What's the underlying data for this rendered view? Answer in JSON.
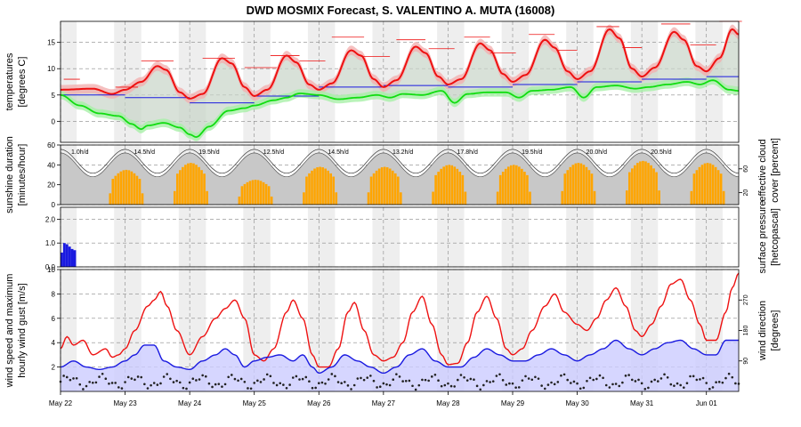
{
  "title": "DWD MOSMIX Forecast, S. VALENTINO A. MUTA (16008)",
  "colors": {
    "temp": "#ee1111",
    "temp_band": "#f2b0b0",
    "dew": "#11dd11",
    "dew_band": "#a8f0a8",
    "blue": "#1a1ae0",
    "sun": "#ffa500",
    "cloud_fill": "#c8c8c8",
    "night": "#eeeeee",
    "wind_fill": "#ccccff"
  },
  "chart_data": [
    {
      "type": "line",
      "panel": "temperature",
      "ylabel": "temperatures\n[degrees C]",
      "ylim": [
        -4,
        19
      ],
      "yticks": [
        0,
        5,
        10,
        15
      ],
      "days": [
        "May 22",
        "May 23",
        "May 24",
        "May 25",
        "May 26",
        "May 27",
        "May 28",
        "May 29",
        "May 30",
        "May 31",
        "Jun 01"
      ],
      "series": [
        {
          "key": "temperature",
          "anchors": [
            [
              0,
              6.0
            ],
            [
              0.5,
              6.2
            ],
            [
              0.8,
              5.2
            ],
            [
              1,
              6.0
            ],
            [
              1.25,
              7.5
            ],
            [
              1.5,
              10.5
            ],
            [
              1.63,
              9.8
            ],
            [
              1.85,
              5.5
            ],
            [
              2,
              4.3
            ],
            [
              2.2,
              5.2
            ],
            [
              2.5,
              12.0
            ],
            [
              2.65,
              11.0
            ],
            [
              2.85,
              6.5
            ],
            [
              3,
              4.8
            ],
            [
              3.2,
              6.0
            ],
            [
              3.5,
              12.5
            ],
            [
              3.65,
              11.2
            ],
            [
              3.85,
              7.0
            ],
            [
              4,
              6.0
            ],
            [
              4.2,
              7.2
            ],
            [
              4.5,
              13.5
            ],
            [
              4.65,
              12.5
            ],
            [
              4.85,
              8.0
            ],
            [
              5,
              6.5
            ],
            [
              5.2,
              7.8
            ],
            [
              5.5,
              14.2
            ],
            [
              5.65,
              13.0
            ],
            [
              5.85,
              8.5
            ],
            [
              6,
              7.0
            ],
            [
              6.2,
              8.0
            ],
            [
              6.5,
              14.8
            ],
            [
              6.65,
              13.5
            ],
            [
              6.85,
              9.0
            ],
            [
              7,
              7.5
            ],
            [
              7.2,
              8.8
            ],
            [
              7.5,
              15.5
            ],
            [
              7.65,
              14.0
            ],
            [
              7.85,
              9.5
            ],
            [
              8,
              8.0
            ],
            [
              8.2,
              9.5
            ],
            [
              8.5,
              17.5
            ],
            [
              8.65,
              15.8
            ],
            [
              8.85,
              10.0
            ],
            [
              9,
              8.5
            ],
            [
              9.2,
              10.2
            ],
            [
              9.5,
              17.0
            ],
            [
              9.65,
              15.5
            ],
            [
              9.85,
              10.5
            ],
            [
              10,
              9.5
            ],
            [
              10.2,
              12.0
            ],
            [
              10.4,
              17.5
            ],
            [
              10.5,
              16.5
            ]
          ]
        },
        {
          "key": "dewpoint",
          "anchors": [
            [
              0,
              5.0
            ],
            [
              0.3,
              3.0
            ],
            [
              0.6,
              1.5
            ],
            [
              0.9,
              1.0
            ],
            [
              1.1,
              -0.5
            ],
            [
              1.25,
              -1.5
            ],
            [
              1.35,
              -0.8
            ],
            [
              1.6,
              -0.3
            ],
            [
              1.85,
              -1.2
            ],
            [
              2,
              -2.5
            ],
            [
              2.1,
              -3.0
            ],
            [
              2.3,
              -1.0
            ],
            [
              2.6,
              2.0
            ],
            [
              2.85,
              2.5
            ],
            [
              3,
              3.0
            ],
            [
              3.3,
              4.0
            ],
            [
              3.5,
              4.5
            ],
            [
              3.7,
              5.3
            ],
            [
              4,
              5.0
            ],
            [
              4.3,
              4.2
            ],
            [
              4.6,
              4.5
            ],
            [
              4.9,
              5.0
            ],
            [
              5.1,
              4.5
            ],
            [
              5.3,
              5.2
            ],
            [
              5.6,
              5.0
            ],
            [
              5.9,
              5.8
            ],
            [
              6.1,
              3.5
            ],
            [
              6.3,
              5.2
            ],
            [
              6.6,
              5.5
            ],
            [
              6.9,
              5.5
            ],
            [
              7.1,
              4.5
            ],
            [
              7.3,
              5.8
            ],
            [
              7.6,
              6.0
            ],
            [
              7.9,
              6.5
            ],
            [
              8.1,
              4.5
            ],
            [
              8.3,
              6.5
            ],
            [
              8.6,
              6.8
            ],
            [
              8.9,
              6.2
            ],
            [
              9.1,
              6.5
            ],
            [
              9.4,
              7.0
            ],
            [
              9.7,
              7.5
            ],
            [
              9.9,
              7.0
            ],
            [
              10.1,
              7.8
            ],
            [
              10.35,
              6.0
            ],
            [
              10.5,
              5.8
            ]
          ]
        }
      ],
      "blue_segments": [
        [
          0,
          5.0
        ],
        [
          1,
          4.5
        ],
        [
          2,
          3.5
        ],
        [
          3,
          4.8
        ],
        [
          4,
          6.5
        ],
        [
          5,
          6.8
        ],
        [
          6,
          6.5
        ],
        [
          7,
          7.0
        ],
        [
          8,
          7.5
        ],
        [
          9,
          8.0
        ],
        [
          10,
          8.5
        ]
      ],
      "max_marks": [
        [
          0.05,
          0.3,
          8.0
        ],
        [
          0.85,
          1.2,
          6.5
        ],
        [
          1.25,
          1.75,
          11.5
        ],
        [
          2.2,
          2.7,
          12.0
        ],
        [
          2.85,
          3.35,
          10.2
        ],
        [
          3.25,
          3.7,
          12.5
        ],
        [
          3.7,
          4.1,
          11.5
        ],
        [
          4.2,
          4.7,
          16.0
        ],
        [
          4.65,
          5.1,
          12.3
        ],
        [
          5.2,
          5.65,
          15.5
        ],
        [
          5.7,
          6.1,
          13.8
        ],
        [
          6.25,
          6.65,
          16.0
        ],
        [
          6.65,
          7.05,
          13.0
        ],
        [
          7.25,
          7.65,
          16.5
        ],
        [
          7.7,
          8.0,
          13.5
        ],
        [
          8.3,
          8.65,
          18.0
        ],
        [
          8.7,
          9.0,
          14.0
        ],
        [
          9.3,
          9.75,
          18.5
        ],
        [
          9.75,
          10.15,
          14.5
        ],
        [
          10.2,
          10.55,
          19.0
        ]
      ]
    },
    {
      "type": "bar",
      "panel": "sunshine",
      "ylabel": "sunshine duration\n[minutes/hour]",
      "ylim": [
        0,
        60
      ],
      "yticks": [
        0,
        20,
        40,
        60
      ],
      "daily_totals": [
        "1.0h/d",
        "14.5h/d",
        "19.5h/d",
        "12.5h/d",
        "14.5h/d",
        "13.2h/d",
        "17.8h/d",
        "19.5h/d",
        "20.0h/d",
        "20.5h/d"
      ],
      "peaks": [
        0,
        35,
        42,
        25,
        38,
        38,
        40,
        40,
        42,
        44,
        42
      ],
      "right_axis": {
        "label": "effective cloud\ncover [percent]",
        "ticks": [
          20,
          60
        ]
      }
    },
    {
      "type": "bar",
      "panel": "precipitation",
      "ylim": [
        0,
        2.5
      ],
      "yticks": [
        0.0,
        1.0,
        2.0
      ],
      "bars": [
        [
          0.0,
          0.6
        ],
        [
          0.04,
          1.0
        ],
        [
          0.08,
          0.95
        ],
        [
          0.12,
          0.85
        ],
        [
          0.16,
          0.75
        ],
        [
          0.2,
          0.7
        ],
        [
          0.24,
          0.0
        ]
      ],
      "right_axis": {
        "label": "surface pressure\n[hetcopascal]"
      }
    },
    {
      "type": "line",
      "panel": "wind",
      "ylabel": "wind speed and maximum\nhourly wind gust [m/s]",
      "ylim": [
        0,
        10
      ],
      "yticks": [
        2,
        4,
        6,
        8,
        10
      ],
      "series": [
        {
          "key": "gust",
          "anchors": [
            [
              0,
              3.5
            ],
            [
              0.1,
              4.5
            ],
            [
              0.2,
              3.8
            ],
            [
              0.35,
              4.2
            ],
            [
              0.5,
              3.0
            ],
            [
              0.7,
              3.5
            ],
            [
              0.8,
              2.8
            ],
            [
              0.9,
              3.0
            ],
            [
              1,
              3.5
            ],
            [
              1.15,
              5.0
            ],
            [
              1.35,
              7.0
            ],
            [
              1.45,
              7.5
            ],
            [
              1.55,
              8.2
            ],
            [
              1.65,
              7.0
            ],
            [
              1.8,
              5.0
            ],
            [
              2,
              3.0
            ],
            [
              2.2,
              4.5
            ],
            [
              2.4,
              6.0
            ],
            [
              2.55,
              6.8
            ],
            [
              2.7,
              7.5
            ],
            [
              2.85,
              6.0
            ],
            [
              3,
              3.0
            ],
            [
              3.15,
              2.5
            ],
            [
              3.3,
              3.5
            ],
            [
              3.5,
              6.5
            ],
            [
              3.6,
              7.5
            ],
            [
              3.75,
              6.0
            ],
            [
              3.9,
              3.0
            ],
            [
              4,
              2.0
            ],
            [
              4.15,
              2.0
            ],
            [
              4.3,
              3.5
            ],
            [
              4.45,
              6.5
            ],
            [
              4.55,
              7.3
            ],
            [
              4.7,
              5.0
            ],
            [
              4.85,
              3.0
            ],
            [
              5,
              2.5
            ],
            [
              5.15,
              2.8
            ],
            [
              5.3,
              4.0
            ],
            [
              5.45,
              6.5
            ],
            [
              5.6,
              7.8
            ],
            [
              5.75,
              5.5
            ],
            [
              5.9,
              3.0
            ],
            [
              6,
              2.2
            ],
            [
              6.15,
              2.3
            ],
            [
              6.3,
              4.0
            ],
            [
              6.45,
              6.5
            ],
            [
              6.6,
              7.8
            ],
            [
              6.75,
              6.0
            ],
            [
              6.9,
              3.5
            ],
            [
              7,
              3.0
            ],
            [
              7.15,
              3.5
            ],
            [
              7.3,
              5.0
            ],
            [
              7.5,
              7.0
            ],
            [
              7.65,
              8.0
            ],
            [
              7.8,
              6.5
            ],
            [
              8,
              5.5
            ],
            [
              8.15,
              5.0
            ],
            [
              8.3,
              6.0
            ],
            [
              8.45,
              7.5
            ],
            [
              8.6,
              8.5
            ],
            [
              8.75,
              7.0
            ],
            [
              8.9,
              5.0
            ],
            [
              9,
              4.5
            ],
            [
              9.15,
              5.5
            ],
            [
              9.3,
              7.0
            ],
            [
              9.45,
              8.8
            ],
            [
              9.6,
              9.2
            ],
            [
              9.75,
              7.5
            ],
            [
              9.9,
              5.5
            ],
            [
              10,
              4.2
            ],
            [
              10.15,
              4.2
            ],
            [
              10.3,
              6.5
            ],
            [
              10.4,
              8.5
            ],
            [
              10.5,
              9.7
            ]
          ]
        },
        {
          "key": "speed",
          "anchors": [
            [
              0,
              2.0
            ],
            [
              0.2,
              2.5
            ],
            [
              0.4,
              2.0
            ],
            [
              0.6,
              1.8
            ],
            [
              0.8,
              2.0
            ],
            [
              1,
              2.5
            ],
            [
              1.15,
              3.0
            ],
            [
              1.3,
              3.8
            ],
            [
              1.45,
              3.8
            ],
            [
              1.6,
              2.5
            ],
            [
              1.8,
              2.0
            ],
            [
              2,
              1.8
            ],
            [
              2.2,
              2.5
            ],
            [
              2.4,
              3.0
            ],
            [
              2.55,
              3.5
            ],
            [
              2.7,
              3.0
            ],
            [
              2.85,
              2.0
            ],
            [
              3,
              2.5
            ],
            [
              3.2,
              2.8
            ],
            [
              3.4,
              3.0
            ],
            [
              3.6,
              2.5
            ],
            [
              3.75,
              3.0
            ],
            [
              3.9,
              2.0
            ],
            [
              4,
              1.5
            ],
            [
              4.2,
              2.0
            ],
            [
              4.4,
              3.0
            ],
            [
              4.6,
              2.5
            ],
            [
              4.8,
              2.0
            ],
            [
              5,
              1.5
            ],
            [
              5.2,
              2.0
            ],
            [
              5.4,
              3.0
            ],
            [
              5.6,
              3.5
            ],
            [
              5.8,
              2.5
            ],
            [
              6,
              2.0
            ],
            [
              6.2,
              2.0
            ],
            [
              6.4,
              2.8
            ],
            [
              6.6,
              3.5
            ],
            [
              6.8,
              3.0
            ],
            [
              7,
              2.5
            ],
            [
              7.2,
              2.5
            ],
            [
              7.4,
              3.0
            ],
            [
              7.6,
              3.5
            ],
            [
              7.8,
              3.0
            ],
            [
              8,
              2.5
            ],
            [
              8.2,
              3.0
            ],
            [
              8.4,
              3.5
            ],
            [
              8.6,
              4.2
            ],
            [
              8.8,
              3.5
            ],
            [
              9,
              3.0
            ],
            [
              9.2,
              3.5
            ],
            [
              9.4,
              4.0
            ],
            [
              9.6,
              4.2
            ],
            [
              9.8,
              3.5
            ],
            [
              10,
              3.0
            ],
            [
              10.15,
              3.0
            ],
            [
              10.3,
              4.2
            ],
            [
              10.5,
              4.2
            ]
          ]
        }
      ],
      "right_axis": {
        "label": "wind direction\n[degrees]",
        "ticks": [
          90,
          180,
          270
        ]
      }
    }
  ]
}
